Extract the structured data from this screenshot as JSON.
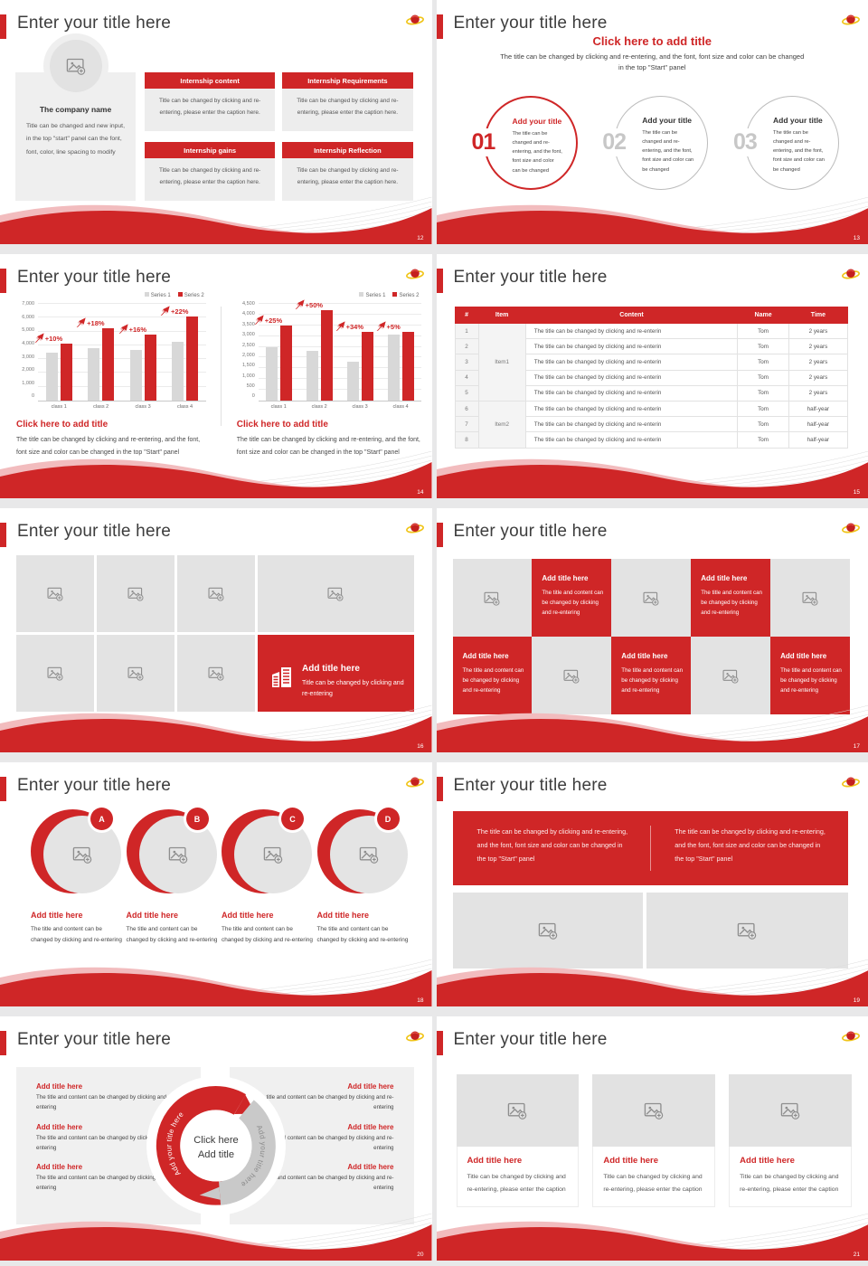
{
  "common": {
    "title": "Enter your title here",
    "accent_color": "#cf2627",
    "logo_icon": "planet-logo"
  },
  "slides": {
    "s12": {
      "page": "12",
      "company": {
        "name": "The company name",
        "body": "Title can be changed and new input, in the top \"start\" panel can the font, font, color, line spacing to modify"
      },
      "boxes": [
        {
          "header": "Internship content",
          "body": "Title can be changed by clicking and re-entering, please enter the caption here."
        },
        {
          "header": "Internship Requirements",
          "body": "Title can be changed by clicking and re-entering, please enter the caption here."
        },
        {
          "header": "Internship gains",
          "body": "Title can be changed by clicking and re-entering, please enter the caption here."
        },
        {
          "header": "Internship Reflection",
          "body": "Title can be changed by clicking and re-entering, please enter the caption here."
        }
      ]
    },
    "s13": {
      "page": "13",
      "heading": "Click here to add title",
      "subtitle": "The title can be changed by clicking and re-entering, and the font, font size and color can be changed in the top \"Start\" panel",
      "items": [
        {
          "num": "01",
          "title": "Add your title",
          "body": "The title can be changed and re-entering, and the font, font size and color can be changed"
        },
        {
          "num": "02",
          "title": "Add your title",
          "body": "The title can be changed and re-entering, and the font, font size and color can be changed"
        },
        {
          "num": "03",
          "title": "Add your title",
          "body": "The title can be changed and re-entering, and the font, font size and color can be changed"
        }
      ]
    },
    "s14": {
      "page": "14",
      "blocks": [
        {
          "heading": "Click here to add title",
          "body": "The title can be changed by clicking and re-entering, and the font, font size and color can be changed in the top \"Start\" panel"
        },
        {
          "heading": "Click here to add title",
          "body": "The title can be changed by clicking and re-entering, and the font, font size and color can be changed in the top \"Start\" panel"
        }
      ]
    },
    "s15": {
      "page": "15",
      "table": {
        "headers": [
          "#",
          "Item",
          "Content",
          "Name",
          "Time"
        ],
        "groups": [
          {
            "label": "Item1",
            "span": 5
          },
          {
            "label": "Item2",
            "span": 3
          }
        ],
        "rows": [
          {
            "num": "1",
            "content": "The title can be changed by clicking and re-enterin",
            "name": "Tom",
            "time": "2 years"
          },
          {
            "num": "2",
            "content": "The title can be changed by clicking and re-enterin",
            "name": "Tom",
            "time": "2 years"
          },
          {
            "num": "3",
            "content": "The title can be changed by clicking and re-enterin",
            "name": "Tom",
            "time": "2 years"
          },
          {
            "num": "4",
            "content": "The title can be changed by clicking and re-enterin",
            "name": "Tom",
            "time": "2 years"
          },
          {
            "num": "5",
            "content": "The title can be changed by clicking and re-enterin",
            "name": "Tom",
            "time": "2 years"
          },
          {
            "num": "6",
            "content": "The title can be changed by clicking and re-enterin",
            "name": "Tom",
            "time": "half-year"
          },
          {
            "num": "7",
            "content": "The title can be changed by clicking and re-enterin",
            "name": "Tom",
            "time": "half-year"
          },
          {
            "num": "8",
            "content": "The title can be changed by clicking and re-enterin",
            "name": "Tom",
            "time": "half-year"
          }
        ]
      }
    },
    "s16": {
      "page": "16",
      "card": {
        "title": "Add title here",
        "body": "Title can be changed by clicking and re-entering"
      }
    },
    "s17": {
      "page": "17",
      "cell": {
        "title": "Add title here",
        "body": "The title and content can be changed by clicking and re-entering"
      }
    },
    "s18": {
      "page": "18",
      "item_title": "Add title here",
      "item_body": "The title and content can be changed by clicking and re-entering",
      "items": [
        {
          "letter": "A"
        },
        {
          "letter": "B"
        },
        {
          "letter": "C"
        },
        {
          "letter": "D"
        }
      ]
    },
    "s19": {
      "page": "19",
      "banner_left": "The title can be changed by clicking and re-entering, and the font, font size and color can be changed in the top \"Start\" panel",
      "banner_right": "The title can be changed by clicking and re-entering, and the font, font size and color can be changed in the top \"Start\" panel"
    },
    "s20": {
      "page": "20",
      "item_title": "Add title here",
      "item_body": "The title and content can be changed by clicking and re-entering",
      "arc_left_label": "Add your title here",
      "arc_right_label": "Add your title here",
      "center_line1": "Click here",
      "center_line2": "Add title"
    },
    "s21": {
      "page": "21",
      "cards": [
        {
          "title": "Add title here",
          "body": "Title can be changed by clicking and re-entering, please enter the caption"
        },
        {
          "title": "Add title here",
          "body": "Title can be changed by clicking and re-entering, please enter the caption"
        },
        {
          "title": "Add title here",
          "body": "Title can be changed by clicking and re-entering, please enter the caption"
        }
      ]
    }
  },
  "chart_data": [
    {
      "type": "bar",
      "categories": [
        "class 1",
        "class 2",
        "class 3",
        "class 4"
      ],
      "series": [
        {
          "name": "Series 1",
          "color": "#d8d8d8",
          "values": [
            3500,
            3800,
            3650,
            4250
          ]
        },
        {
          "name": "Series 2",
          "color": "#cf2627",
          "values": [
            4150,
            5250,
            4750,
            6100
          ]
        }
      ],
      "labels": [
        "+10%",
        "+18%",
        "+16%",
        "+22%"
      ],
      "ylim": [
        0,
        7000
      ],
      "ystep": 1000,
      "grid": true,
      "legend_position": "top-right",
      "title": "",
      "xlabel": "",
      "ylabel": ""
    },
    {
      "type": "bar",
      "categories": [
        "class 1",
        "class 2",
        "class 3",
        "class 4"
      ],
      "series": [
        {
          "name": "Series 1",
          "color": "#d8d8d8",
          "values": [
            2500,
            2300,
            1800,
            3050
          ]
        },
        {
          "name": "Series 2",
          "color": "#cf2627",
          "values": [
            3500,
            4200,
            3200,
            3200
          ]
        }
      ],
      "labels": [
        "+25%",
        "+50%",
        "+34%",
        "+5%"
      ],
      "ylim": [
        0,
        4500
      ],
      "ystep": 500,
      "grid": true,
      "legend_position": "top-right",
      "title": "",
      "xlabel": "",
      "ylabel": ""
    }
  ]
}
